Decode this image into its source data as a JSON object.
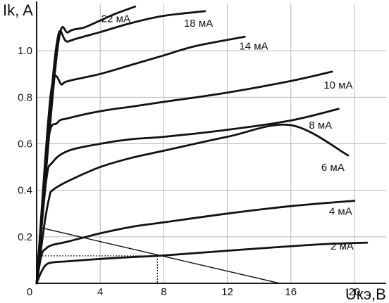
{
  "chart_data": {
    "type": "line",
    "title": "",
    "ylabel": "Ik, A",
    "xlabel": "Uкэ,В",
    "xlim": [
      0,
      22
    ],
    "ylim": [
      0,
      1.2
    ],
    "x_ticks": [
      0,
      4,
      8,
      12,
      16,
      20
    ],
    "x_tick_labels": [
      "0",
      "4",
      "8",
      "12",
      "16",
      "20"
    ],
    "y_ticks": [
      0.2,
      0.4,
      0.6,
      0.8,
      1.0
    ],
    "y_tick_labels": [
      "0.2",
      "0.4",
      "0.6",
      "0.8",
      "1.0"
    ],
    "grid": true,
    "legend": "none",
    "series": [
      {
        "name": "2 мА",
        "x": [
          0,
          0.3,
          0.6,
          1,
          2,
          4,
          6,
          7.6,
          10,
          14,
          18,
          20.8
        ],
        "y": [
          0,
          0.05,
          0.08,
          0.09,
          0.095,
          0.105,
          0.113,
          0.118,
          0.13,
          0.15,
          0.168,
          0.175
        ]
      },
      {
        "name": "4 мА",
        "x": [
          0,
          0.3,
          0.6,
          1,
          2,
          4,
          6,
          8,
          12,
          16,
          20
        ],
        "y": [
          0,
          0.12,
          0.15,
          0.165,
          0.18,
          0.215,
          0.243,
          0.262,
          0.3,
          0.332,
          0.355
        ]
      },
      {
        "name": "6 мА",
        "x": [
          0,
          0.5,
          0.8,
          1,
          2,
          4,
          6,
          8,
          12,
          16,
          19.6
        ],
        "y": [
          0,
          0.26,
          0.37,
          0.4,
          0.44,
          0.5,
          0.54,
          0.57,
          0.63,
          0.68,
          0.55
        ]
      },
      {
        "name": "8 мА",
        "x": [
          0,
          0.6,
          1,
          2,
          4,
          6,
          8,
          12,
          16,
          19
        ],
        "y": [
          0,
          0.44,
          0.52,
          0.57,
          0.6,
          0.62,
          0.63,
          0.66,
          0.7,
          0.75
        ]
      },
      {
        "name": "10 мА",
        "x": [
          0,
          0.7,
          1.3,
          2,
          4,
          6,
          8,
          12,
          16,
          18.6
        ],
        "y": [
          0,
          0.6,
          0.69,
          0.71,
          0.74,
          0.76,
          0.78,
          0.82,
          0.87,
          0.91
        ]
      },
      {
        "name": "14 мА",
        "x": [
          0,
          0.9,
          1.6,
          2,
          4,
          6,
          8,
          10,
          13.1
        ],
        "y": [
          0,
          0.82,
          0.855,
          0.87,
          0.9,
          0.94,
          0.98,
          1.02,
          1.06
        ]
      },
      {
        "name": "18 мА",
        "x": [
          0,
          1.2,
          2,
          4,
          6,
          8,
          10.6
        ],
        "y": [
          0,
          1.0,
          1.04,
          1.08,
          1.12,
          1.15,
          1.17
        ]
      },
      {
        "name": "22 мА",
        "x": [
          0,
          1.3,
          2,
          3,
          4,
          5,
          6.2
        ],
        "y": [
          0,
          1.0,
          1.08,
          1.1,
          1.13,
          1.16,
          1.19
        ]
      }
    ],
    "load_line": {
      "x": [
        0.2,
        15.3
      ],
      "y": [
        0.24,
        0
      ]
    },
    "operating_point": {
      "x": 7.6,
      "y": 0.118
    }
  }
}
